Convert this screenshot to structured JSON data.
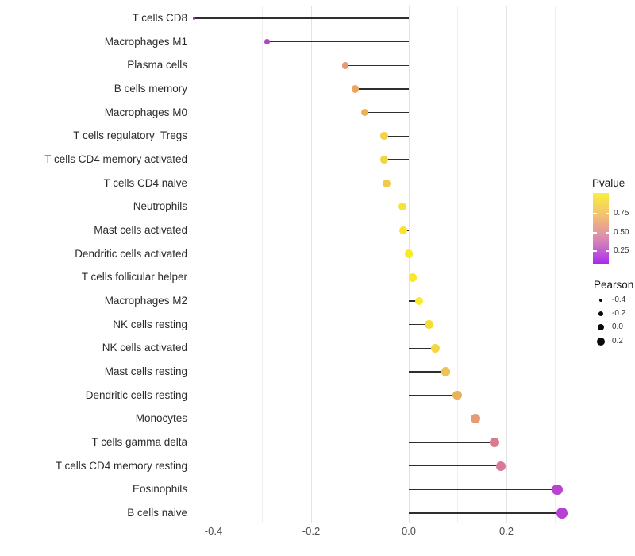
{
  "chart_data": {
    "type": "scatter",
    "variant": "lollipop",
    "orientation": "horizontal",
    "title": "",
    "xlabel": "",
    "ylabel": "",
    "xlim": [
      -0.45,
      0.35
    ],
    "x_ticks": [
      -0.4,
      -0.2,
      0.0,
      0.2
    ],
    "x_tick_labels": [
      "-0.4",
      "-0.2",
      "0.0",
      "0.2"
    ],
    "x_minor_ticks": [
      -0.3,
      -0.1,
      0.1,
      0.3
    ],
    "baseline": 0,
    "grid": "on",
    "legend_position": "right",
    "categories": [
      "T cells CD8",
      "Macrophages M1",
      "Plasma cells",
      "B cells memory",
      "Macrophages M0",
      "T cells regulatory  Tregs",
      "T cells CD4 memory activated",
      "T cells CD4 naive",
      "Neutrophils",
      "Mast cells activated",
      "Dendritic cells activated",
      "T cells follicular helper",
      "Macrophages M2",
      "NK cells resting",
      "NK cells activated",
      "Mast cells resting",
      "Dendritic cells resting",
      "Monocytes",
      "T cells gamma delta",
      "T cells CD4 memory resting",
      "Eosinophils",
      "B cells naive"
    ],
    "series": [
      {
        "name": "Pearson",
        "values": [
          -0.44,
          -0.29,
          -0.13,
          -0.11,
          -0.09,
          -0.051,
          -0.05,
          -0.046,
          -0.013,
          -0.011,
          0.0,
          0.008,
          0.021,
          0.042,
          0.054,
          0.076,
          0.099,
          0.137,
          0.176,
          0.189,
          0.304,
          0.314
        ]
      }
    ],
    "point_colors": [
      "#9232dc",
      "#b244ca",
      "#e79a79",
      "#eca55f",
      "#eeb055",
      "#f3d243",
      "#f4d441",
      "#f1ca4b",
      "#f7e430",
      "#f7e430",
      "#f9ea26",
      "#f8e72b",
      "#f8e92a",
      "#f5dd36",
      "#f3d73e",
      "#eec253",
      "#ebb05b",
      "#e69b74",
      "#d87c90",
      "#d57b99",
      "#bb43d1",
      "#b740d3"
    ],
    "stem_color": "#2e2e2e"
  },
  "legend": {
    "pvalue": {
      "title": "Pvalue",
      "tick_labels": [
        "0.75",
        "0.50",
        "0.25"
      ],
      "gradient_top_to_bottom": [
        "#f9ef3d",
        "#f5da55",
        "#f2c76d",
        "#ecab85",
        "#e096a4",
        "#cf79c0",
        "#bd50da",
        "#a826ee"
      ]
    },
    "pearson": {
      "title": "Pearson",
      "items": [
        {
          "label": "-0.4",
          "value": -0.4
        },
        {
          "label": "-0.2",
          "value": -0.2
        },
        {
          "label": "0.0",
          "value": 0.0
        },
        {
          "label": "0.2",
          "value": 0.2
        }
      ],
      "dot_color": "#0a0a0a"
    }
  }
}
